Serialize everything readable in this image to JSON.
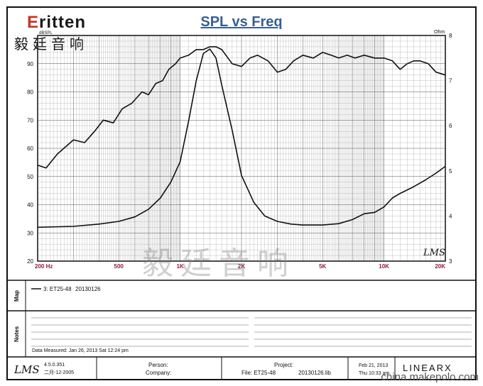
{
  "header": {
    "logo_text": "ritten",
    "logo_initial": "E",
    "logo_cn": "毅廷音响",
    "title": "SPL vs Freq"
  },
  "chart_data": {
    "type": "line",
    "title": "SPL vs Freq",
    "xscale": "log",
    "xlim": [
      200,
      20000
    ],
    "x_ticks": [
      {
        "v": 200,
        "label": "200  Hz"
      },
      {
        "v": 500,
        "label": "500"
      },
      {
        "v": 1000,
        "label": "1K"
      },
      {
        "v": 2000,
        "label": "2K"
      },
      {
        "v": 5000,
        "label": "5K"
      },
      {
        "v": 10000,
        "label": "10K"
      },
      {
        "v": 20000,
        "label": "20K"
      }
    ],
    "y_left": {
      "unit": "dBSPL",
      "lim": [
        20,
        100
      ],
      "ticks": [
        20,
        30,
        40,
        50,
        60,
        70,
        80,
        90
      ]
    },
    "y_right": {
      "unit": "Ohm",
      "lim": [
        3,
        8
      ],
      "ticks": [
        3,
        4,
        5,
        6,
        7,
        8
      ]
    },
    "grid": true,
    "series": [
      {
        "axis": "left",
        "points": [
          [
            200,
            54
          ],
          [
            220,
            53
          ],
          [
            250,
            58
          ],
          [
            300,
            63
          ],
          [
            340,
            62
          ],
          [
            380,
            66
          ],
          [
            420,
            70
          ],
          [
            470,
            69
          ],
          [
            520,
            74
          ],
          [
            580,
            76
          ],
          [
            650,
            80
          ],
          [
            700,
            79
          ],
          [
            760,
            83
          ],
          [
            820,
            84
          ],
          [
            880,
            88
          ],
          [
            950,
            90
          ],
          [
            1000,
            92
          ],
          [
            1100,
            93
          ],
          [
            1200,
            95
          ],
          [
            1300,
            95
          ],
          [
            1400,
            96
          ],
          [
            1500,
            96
          ],
          [
            1600,
            95
          ],
          [
            1800,
            90
          ],
          [
            2000,
            89
          ],
          [
            2200,
            92
          ],
          [
            2400,
            93
          ],
          [
            2700,
            91
          ],
          [
            3000,
            87
          ],
          [
            3300,
            88
          ],
          [
            3600,
            91
          ],
          [
            4000,
            93
          ],
          [
            4500,
            92
          ],
          [
            5000,
            94
          ],
          [
            5500,
            93
          ],
          [
            6000,
            92
          ],
          [
            6600,
            93
          ],
          [
            7200,
            92
          ],
          [
            8000,
            93
          ],
          [
            9000,
            92
          ],
          [
            10000,
            92
          ],
          [
            11000,
            91
          ],
          [
            12000,
            88
          ],
          [
            13000,
            90
          ],
          [
            14000,
            91
          ],
          [
            15000,
            91
          ],
          [
            16500,
            90
          ],
          [
            18000,
            87
          ],
          [
            20000,
            86
          ]
        ]
      },
      {
        "axis": "right",
        "points": [
          [
            200,
            3.75
          ],
          [
            300,
            3.77
          ],
          [
            400,
            3.82
          ],
          [
            500,
            3.88
          ],
          [
            600,
            3.98
          ],
          [
            700,
            4.15
          ],
          [
            800,
            4.4
          ],
          [
            900,
            4.75
          ],
          [
            1000,
            5.2
          ],
          [
            1100,
            6.1
          ],
          [
            1200,
            7.0
          ],
          [
            1300,
            7.6
          ],
          [
            1400,
            7.7
          ],
          [
            1500,
            7.5
          ],
          [
            1600,
            6.9
          ],
          [
            1800,
            5.9
          ],
          [
            2000,
            4.9
          ],
          [
            2300,
            4.3
          ],
          [
            2600,
            4.0
          ],
          [
            3000,
            3.88
          ],
          [
            3500,
            3.82
          ],
          [
            4000,
            3.8
          ],
          [
            5000,
            3.8
          ],
          [
            6000,
            3.83
          ],
          [
            7000,
            3.92
          ],
          [
            8000,
            4.05
          ],
          [
            9000,
            4.08
          ],
          [
            10000,
            4.2
          ],
          [
            11000,
            4.4
          ],
          [
            12000,
            4.5
          ],
          [
            14000,
            4.65
          ],
          [
            16000,
            4.8
          ],
          [
            18000,
            4.95
          ],
          [
            20000,
            5.1
          ]
        ]
      }
    ],
    "annotation": "LMS"
  },
  "map": {
    "label": "Map",
    "legend_entry": "3: ET25-48",
    "legend_date": "20130126"
  },
  "notes": {
    "label": "Notes",
    "measured": "Data Measured: Jan 26, 2013  Sat 12:24 pm"
  },
  "footer": {
    "lms": "LMS",
    "version": "4.5.0.351",
    "build_date": "二月-12-2005",
    "person_label": "Person:",
    "company_label": "Company:",
    "project_label": "Project:",
    "file_label": "File: ET25-48",
    "file_date": "20130126.lib",
    "date": "Feb 21, 2013",
    "time": "Thu 10:33 am",
    "brand": "LINEARX"
  },
  "watermark": "毅廷音响",
  "site": "china.makepolo.com"
}
